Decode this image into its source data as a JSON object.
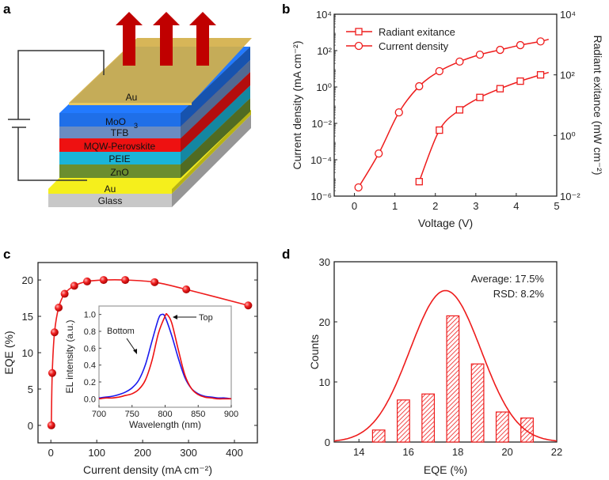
{
  "panel_labels": [
    "a",
    "b",
    "c",
    "d"
  ],
  "device": {
    "layers": [
      {
        "name": "Au",
        "color": "#d4b04a"
      },
      {
        "name": "MoO",
        "sub": "3",
        "color": "#1f6fe8"
      },
      {
        "name": "TFB",
        "color": "#6a8cc2"
      },
      {
        "name": "MQW-Perovskite",
        "color": "#ee1111"
      },
      {
        "name": "PEIE",
        "color": "#1bb4d8"
      },
      {
        "name": "ZnO",
        "color": "#6b8e2f"
      },
      {
        "name": "Au",
        "color": "#f5ef1c"
      },
      {
        "name": "Glass",
        "color": "#c8c8c8"
      }
    ],
    "arrow_color": "#c00000"
  },
  "chart_data": [
    {
      "type": "line",
      "panel": "b",
      "xlabel": "Voltage (V)",
      "ylabel": "Current density (mA cm⁻²)",
      "ylabel_right": "Radiant exitance (mW cm⁻²)",
      "xlim": [
        -0.5,
        5
      ],
      "ylim": [
        1e-06,
        10000.0
      ],
      "ylim_right": [
        0.01,
        10000.0
      ],
      "yscale": "log",
      "x_ticks": [
        "0",
        "1",
        "2",
        "3",
        "4",
        "5"
      ],
      "y_ticks": [
        "10⁻⁶",
        "10⁻⁴",
        "10⁻²",
        "10⁰",
        "10²",
        "10⁴"
      ],
      "y_ticks_right": [
        "10⁻²",
        "10⁰",
        "10²",
        "10⁴"
      ],
      "legend_position": "top-left",
      "color": "#ee1c1c",
      "series": [
        {
          "name": "Radiant exitance",
          "axis": "right",
          "marker": "square",
          "x": [
            1.6,
            2.1,
            2.6,
            3.1,
            3.6,
            4.1,
            4.6
          ],
          "y": [
            0.03,
            1.5,
            7,
            18,
            35,
            62,
            100
          ]
        },
        {
          "name": "Current density",
          "axis": "left",
          "marker": "circle",
          "x": [
            0.1,
            0.6,
            1.1,
            1.6,
            2.1,
            2.6,
            3.1,
            3.6,
            4.1,
            4.6
          ],
          "y": [
            3e-06,
            0.00022,
            0.04,
            1.1,
            7.4,
            25,
            60,
            110,
            200,
            320
          ]
        }
      ]
    },
    {
      "type": "line",
      "panel": "c",
      "xlabel": "Current density (mA cm⁻²)",
      "ylabel": "EQE (%)",
      "xlim": [
        -28,
        450
      ],
      "ylim": [
        -2.4,
        22.4
      ],
      "x_ticks": [
        "0",
        "100",
        "200",
        "300",
        "400"
      ],
      "y_ticks": [
        "0",
        "5",
        "10",
        "15",
        "20"
      ],
      "color": "#ee1c1c",
      "series": [
        {
          "name": "EQE",
          "marker": "sphere",
          "x": [
            1,
            3,
            8,
            17,
            30,
            51,
            79,
            115,
            162,
            226,
            295,
            430
          ],
          "y": [
            0,
            7.2,
            12.8,
            16.2,
            18.1,
            19.2,
            19.8,
            20.0,
            20.0,
            19.7,
            18.7,
            16.5
          ]
        }
      ],
      "inset": {
        "type": "line",
        "xlabel": "Wavelength (nm)",
        "ylabel": "EL intensity (a.u.)",
        "xlim": [
          700,
          900
        ],
        "ylim": [
          -0.1,
          1.1
        ],
        "x_ticks": [
          "700",
          "750",
          "800",
          "850",
          "900"
        ],
        "y_ticks": [
          "0.0",
          "0.2",
          "0.4",
          "0.6",
          "0.8",
          "1.0"
        ],
        "annotations": [
          "Top",
          "Bottom"
        ],
        "series": [
          {
            "name": "Bottom",
            "color": "#1a1aee",
            "x": [
              700,
              710,
              720,
              730,
              740,
              750,
              760,
              770,
              780,
              790,
              795,
              800,
              810,
              820,
              830,
              840,
              850,
              860,
              870,
              880,
              890,
              900
            ],
            "y": [
              0.01,
              0.02,
              0.03,
              0.05,
              0.08,
              0.13,
              0.22,
              0.4,
              0.68,
              0.95,
              1.0,
              0.97,
              0.75,
              0.48,
              0.25,
              0.12,
              0.06,
              0.03,
              0.02,
              0.01,
              0.01,
              0.0
            ]
          },
          {
            "name": "Top",
            "color": "#ee1111",
            "x": [
              700,
              710,
              720,
              730,
              740,
              750,
              760,
              770,
              780,
              790,
              800,
              803,
              810,
              820,
              830,
              840,
              850,
              860,
              870,
              880,
              890,
              900
            ],
            "y": [
              0.0,
              0.01,
              0.01,
              0.02,
              0.04,
              0.06,
              0.11,
              0.22,
              0.45,
              0.78,
              0.98,
              1.0,
              0.9,
              0.58,
              0.28,
              0.12,
              0.05,
              0.02,
              0.01,
              0.0,
              0.0,
              0.0
            ]
          }
        ]
      }
    },
    {
      "type": "bar",
      "panel": "d",
      "xlabel": "EQE (%)",
      "ylabel": "Counts",
      "xlim": [
        13,
        22
      ],
      "ylim": [
        0,
        30
      ],
      "x_ticks": [
        "14",
        "16",
        "18",
        "20",
        "22"
      ],
      "y_ticks": [
        "0",
        "10",
        "20",
        "30"
      ],
      "color": "#ee1c1c",
      "bins_center": [
        14.8,
        15.8,
        16.8,
        17.8,
        18.8,
        19.8,
        20.8
      ],
      "bin_width": 0.5,
      "values": [
        2,
        7,
        8,
        21,
        13,
        5,
        4
      ],
      "fit": {
        "type": "gaussian",
        "mean": 17.5,
        "sigma": 1.44,
        "peak": 25.2
      },
      "annotations": [
        "Average: 17.5%",
        "RSD: 8.2%"
      ]
    }
  ]
}
